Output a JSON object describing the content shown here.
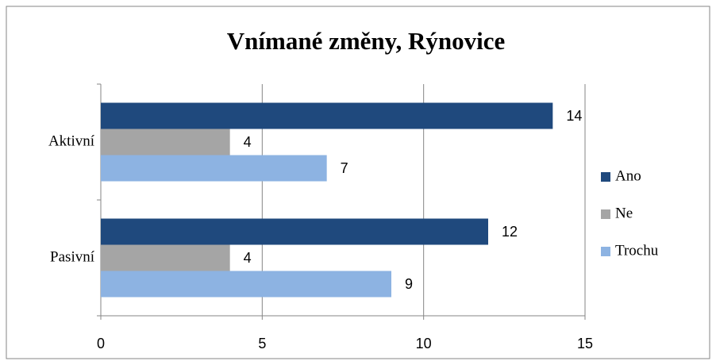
{
  "chart_data": {
    "type": "barh",
    "title": "Vnímané změny, Rýnovice",
    "categories": [
      "Aktivní",
      "Pasivní"
    ],
    "series": [
      {
        "name": "Ano",
        "color": "#1f497d",
        "values": [
          14,
          12
        ]
      },
      {
        "name": "Ne",
        "color": "#a5a5a5",
        "values": [
          4,
          4
        ]
      },
      {
        "name": "Trochu",
        "color": "#8db3e2",
        "values": [
          7,
          9
        ]
      }
    ],
    "xlim": [
      0,
      15
    ],
    "xticks": [
      0,
      5,
      10,
      15
    ],
    "grid": true,
    "legend": "right"
  }
}
